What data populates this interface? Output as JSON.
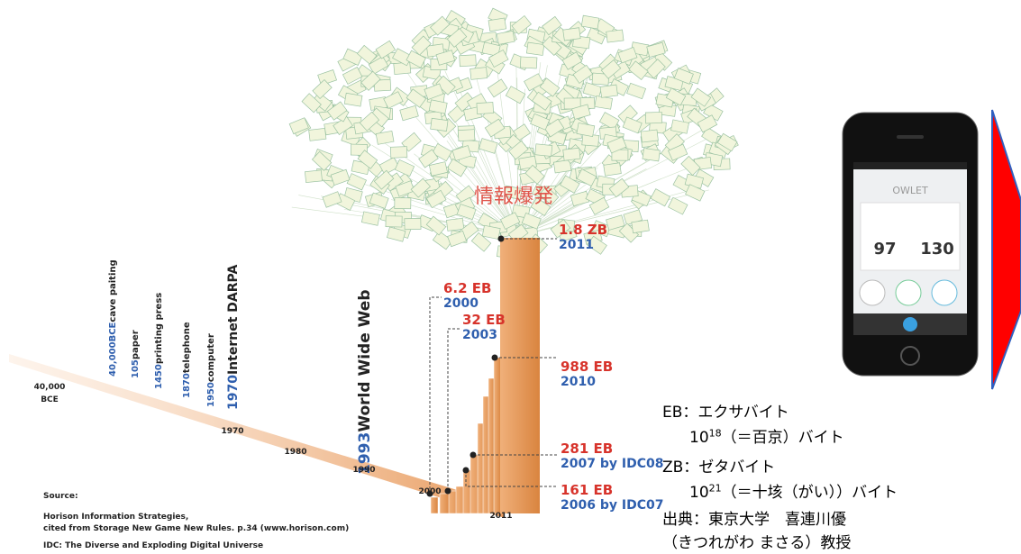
{
  "title": "情報爆発",
  "timeline": {
    "events": [
      {
        "year": "40,000BCE",
        "event": "cave paiting"
      },
      {
        "year": "105",
        "event": "paper"
      },
      {
        "year": "1450",
        "event": "printing press"
      },
      {
        "year": "1870",
        "event": "telephone"
      },
      {
        "year": "1950",
        "event": "computer"
      },
      {
        "year": "1970",
        "event": "Internet DARPA"
      },
      {
        "year": "1993",
        "event": "World Wide Web"
      }
    ],
    "axis_labels": [
      [
        "40,000",
        "BCE"
      ],
      [
        "1970"
      ],
      [
        "1980"
      ],
      [
        "1990"
      ],
      [
        "2000"
      ],
      [
        "2011"
      ]
    ]
  },
  "callouts": [
    {
      "amount": "1.8 ZB",
      "source": "2011"
    },
    {
      "amount": "6.2 EB",
      "source": "2000"
    },
    {
      "amount": "32 EB",
      "source": "2003"
    },
    {
      "amount": "988 EB",
      "source": "2010"
    },
    {
      "amount": "281 EB",
      "source": "2007 by IDC08"
    },
    {
      "amount": "161 EB",
      "source": "2006 by IDC07"
    }
  ],
  "source": [
    "Source:",
    "Horison Information Strategies,",
    "cited from Storage New Game New Rules. p.34 (www.horison.com)",
    "IDC: The Diverse and Exploding Digital Universe"
  ],
  "phone": {
    "app_name": "OWLET",
    "oxygen": "97",
    "heart": "130"
  },
  "notes": {
    "eb_term": "EB：エクサバイト",
    "eb_base": "10",
    "eb_exp": "18",
    "eb_rest": "（＝百京）バイト",
    "zb_term": "ZB：ゼタバイト",
    "zb_base": "10",
    "zb_exp": "21",
    "zb_rest": "（＝十垓（がい））バイト",
    "credit1": "出典：東京大学　喜連川優",
    "credit2": "（きつれがわ まさる）教授"
  }
}
